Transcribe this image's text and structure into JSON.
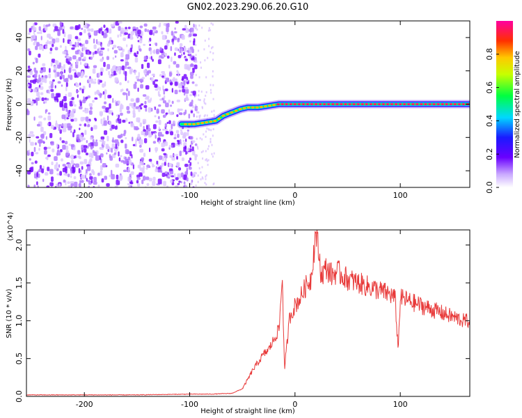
{
  "title": "GN02.2023.290.06.20.G10",
  "colors": {
    "snr_line": "#e83a3a",
    "spectrogram_trace": "#6a00ff"
  },
  "chart_data": [
    {
      "type": "heatmap",
      "name": "spectrogram",
      "xlabel": "Height of straight line (km)",
      "ylabel": "Frequency (Hz)",
      "xlim": [
        -255,
        166
      ],
      "ylim": [
        -50,
        50
      ],
      "xticks": [
        -200,
        -100,
        0,
        100
      ],
      "xtick_labels": [
        "-200",
        "-100",
        "0",
        "100"
      ],
      "yticks": [
        -40,
        -20,
        0,
        20,
        40
      ],
      "ytick_labels": [
        "-40",
        "-20",
        "0",
        "20",
        "40"
      ],
      "colorbar": {
        "label": "Normalized spectral amplitude",
        "range": [
          0.0,
          1.0
        ],
        "ticks": [
          0.0,
          0.2,
          0.4,
          0.6,
          0.8
        ],
        "tick_labels": [
          "0.0",
          "0.2",
          "0.4",
          "0.6",
          "0.8"
        ]
      },
      "dominant_trace": {
        "x": [
          -108,
          -95,
          -85,
          -75,
          -68,
          -60,
          -52,
          -45,
          -35,
          -25,
          -15,
          0,
          20,
          50,
          80,
          110,
          140,
          166
        ],
        "y": [
          -12,
          -12,
          -11,
          -10,
          -7,
          -5,
          -3,
          -2,
          -2,
          -1,
          0,
          0,
          0,
          0,
          0,
          0,
          0,
          0
        ]
      }
    },
    {
      "type": "line",
      "name": "snr",
      "xlabel": "Height of straight line (km)",
      "ylabel": "SNR (10 * v/v)",
      "scale_label": "(x10^4)",
      "xlim": [
        -255,
        166
      ],
      "ylim": [
        0,
        2.2
      ],
      "xticks": [
        -200,
        -100,
        0,
        100
      ],
      "xtick_labels": [
        "-200",
        "-100",
        "0",
        "100"
      ],
      "yticks": [
        0.0,
        0.5,
        1.0,
        1.5,
        2.0
      ],
      "ytick_labels": [
        "0.0",
        "0.5",
        "1.0",
        "1.5",
        "2.0"
      ],
      "series": [
        {
          "name": "SNR",
          "x": [
            -255,
            -200,
            -150,
            -100,
            -80,
            -60,
            -50,
            -45,
            -40,
            -35,
            -30,
            -25,
            -20,
            -15,
            -12,
            -10,
            -5,
            0,
            5,
            10,
            15,
            20,
            25,
            30,
            35,
            40,
            50,
            60,
            70,
            80,
            90,
            95,
            98,
            100,
            105,
            110,
            120,
            130,
            140,
            150,
            160,
            166
          ],
          "y": [
            0.02,
            0.02,
            0.02,
            0.03,
            0.03,
            0.04,
            0.1,
            0.22,
            0.35,
            0.45,
            0.55,
            0.62,
            0.75,
            0.9,
            1.6,
            0.35,
            1.05,
            1.2,
            1.3,
            1.45,
            1.55,
            2.2,
            1.6,
            1.7,
            1.6,
            1.65,
            1.55,
            1.5,
            1.45,
            1.4,
            1.35,
            1.3,
            0.62,
            1.3,
            1.28,
            1.25,
            1.2,
            1.15,
            1.1,
            1.05,
            1.0,
            1.0
          ]
        }
      ]
    }
  ]
}
